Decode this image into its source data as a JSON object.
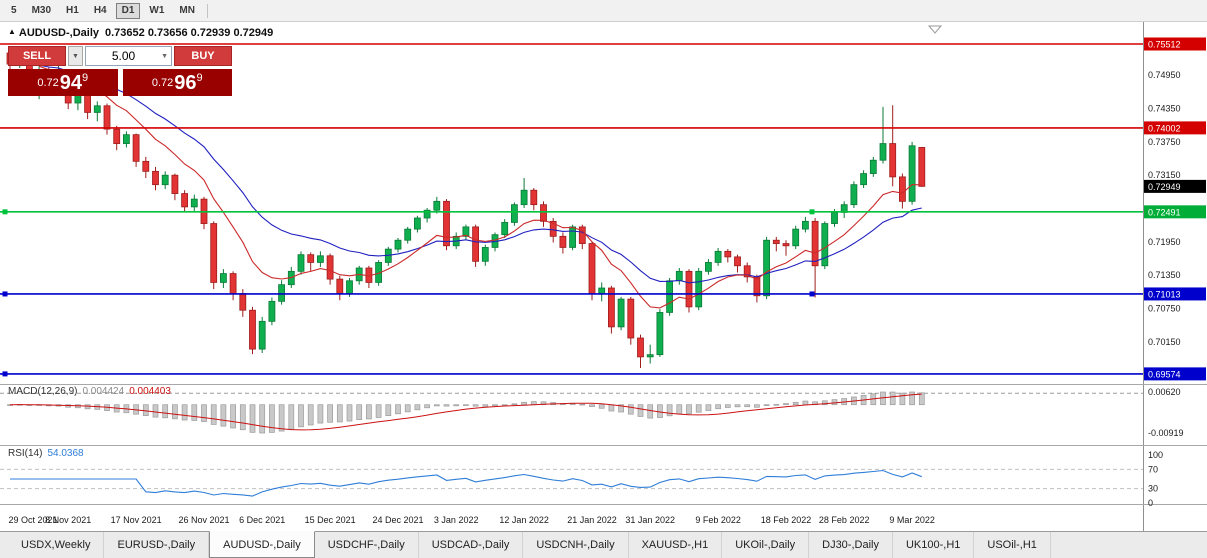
{
  "toolbar": {
    "timeframes": [
      "5",
      "M30",
      "H1",
      "H4",
      "D1",
      "W1",
      "MN"
    ],
    "active": "D1"
  },
  "chart_title": {
    "marker": "▲",
    "symbol": "AUDUSD-,Daily",
    "ohlc": "0.73652 0.73656 0.72939 0.72949"
  },
  "trade_panel": {
    "sell_label": "SELL",
    "buy_label": "BUY",
    "volume": "5.00",
    "dropdown_icon": "▼",
    "sell_price": {
      "prefix": "0.72",
      "big": "94",
      "sup": "9"
    },
    "buy_price": {
      "prefix": "0.72",
      "big": "96",
      "sup": "9"
    }
  },
  "indicators": {
    "macd": {
      "name": "MACD(12,26,9)",
      "main": "0.004424",
      "signal": "0.004403",
      "axis_max": "0.00620",
      "axis_min": "-0.00919",
      "level": 0.004403
    },
    "rsi": {
      "name": "RSI(14)",
      "value": "54.0368",
      "axis": [
        "100",
        "70",
        "30",
        "0"
      ],
      "levels": [
        70,
        30
      ]
    }
  },
  "price_axis": {
    "ticks": [
      "0.74950",
      "0.74350",
      "0.73750",
      "0.73150",
      "0.71950",
      "0.71350",
      "0.70750",
      "0.70150"
    ],
    "markers": [
      {
        "text": "0.75512",
        "color": "#d40000"
      },
      {
        "text": "0.74002",
        "color": "#d40000"
      },
      {
        "text": "0.72949",
        "color": "#000000"
      },
      {
        "text": "0.72491",
        "color": "#00ad36"
      },
      {
        "text": "0.71013",
        "color": "#0000cd"
      },
      {
        "text": "0.69574",
        "color": "#0000cd"
      }
    ]
  },
  "hlines": [
    {
      "price": 0.75512,
      "color": "#d40000",
      "handles": []
    },
    {
      "price": 0.74002,
      "color": "#d40000",
      "handles": []
    },
    {
      "price": 0.72491,
      "color": "#00c23c",
      "handles": [
        5,
        812
      ]
    },
    {
      "price": 0.71013,
      "color": "#0000cd",
      "handles": [
        5,
        812
      ]
    },
    {
      "price": 0.69574,
      "color": "#0000cd",
      "handles": [
        5
      ]
    }
  ],
  "time_axis": {
    "labels": [
      "29 Oct 2021",
      "8 Nov 2021",
      "17 Nov 2021",
      "26 Nov 2021",
      "6 Dec 2021",
      "15 Dec 2021",
      "24 Dec 2021",
      "3 Jan 2022",
      "12 Jan 2022",
      "21 Jan 2022",
      "31 Jan 2022",
      "9 Feb 2022",
      "18 Feb 2022",
      "28 Feb 2022",
      "9 Mar 2022"
    ],
    "indices": [
      0,
      6,
      13,
      20,
      26,
      33,
      40,
      46,
      53,
      60,
      66,
      73,
      80,
      86,
      93
    ]
  },
  "tabs": {
    "items": [
      "USDX,Weekly",
      "EURUSD-,Daily",
      "AUDUSD-,Daily",
      "USDCHF-,Daily",
      "USDCAD-,Daily",
      "USDCNH-,Daily",
      "XAUUSD-,H1",
      "UKOil-,Daily",
      "DJ30-,Daily",
      "UK100-,H1",
      "USOil-,H1"
    ],
    "active": "AUDUSD-,Daily"
  },
  "chart_data": {
    "type": "candlestick",
    "symbol": "AUDUSD",
    "timeframe": "Daily",
    "current_price": 0.72949,
    "colors": {
      "up": "#0fae4e",
      "up_dark": "#0b7a37",
      "down": "#e23434",
      "down_dark": "#9e1c1c",
      "ma_fast": "#cc2929",
      "ma_slow": "#2020c0",
      "macd_hist": "#c9c9c9",
      "macd_signal": "#cc1111",
      "rsi_line": "#2f7ed8"
    },
    "candles": [
      [
        0.7535,
        0.7541,
        0.7492,
        0.7515
      ],
      [
        0.7515,
        0.7536,
        0.7508,
        0.7528
      ],
      [
        0.7528,
        0.7532,
        0.7478,
        0.749
      ],
      [
        0.749,
        0.7512,
        0.7452,
        0.7505
      ],
      [
        0.7505,
        0.751,
        0.7464,
        0.7477
      ],
      [
        0.7477,
        0.7529,
        0.747,
        0.749
      ],
      [
        0.749,
        0.7494,
        0.7434,
        0.7445
      ],
      [
        0.7445,
        0.7468,
        0.7432,
        0.746
      ],
      [
        0.746,
        0.7465,
        0.7416,
        0.7428
      ],
      [
        0.7428,
        0.7448,
        0.7412,
        0.744
      ],
      [
        0.744,
        0.7444,
        0.7388,
        0.7398
      ],
      [
        0.7398,
        0.7404,
        0.736,
        0.7372
      ],
      [
        0.7372,
        0.7394,
        0.7365,
        0.7388
      ],
      [
        0.7388,
        0.739,
        0.733,
        0.734
      ],
      [
        0.734,
        0.7348,
        0.731,
        0.7322
      ],
      [
        0.7322,
        0.733,
        0.7288,
        0.7298
      ],
      [
        0.7298,
        0.7322,
        0.729,
        0.7315
      ],
      [
        0.7315,
        0.7318,
        0.727,
        0.7282
      ],
      [
        0.7282,
        0.7288,
        0.7248,
        0.7258
      ],
      [
        0.7258,
        0.728,
        0.725,
        0.7272
      ],
      [
        0.7272,
        0.7276,
        0.7218,
        0.7228
      ],
      [
        0.7228,
        0.7232,
        0.711,
        0.7122
      ],
      [
        0.7122,
        0.7146,
        0.7112,
        0.7138
      ],
      [
        0.7138,
        0.7142,
        0.709,
        0.7102
      ],
      [
        0.7102,
        0.711,
        0.706,
        0.7072
      ],
      [
        0.7072,
        0.7078,
        0.6993,
        0.7002
      ],
      [
        0.7002,
        0.706,
        0.6995,
        0.7052
      ],
      [
        0.7052,
        0.7095,
        0.7045,
        0.7088
      ],
      [
        0.7088,
        0.7126,
        0.7082,
        0.7118
      ],
      [
        0.7118,
        0.715,
        0.7112,
        0.7142
      ],
      [
        0.7142,
        0.7178,
        0.7136,
        0.7172
      ],
      [
        0.7172,
        0.7176,
        0.7142,
        0.7158
      ],
      [
        0.7158,
        0.7178,
        0.715,
        0.717
      ],
      [
        0.717,
        0.7174,
        0.7118,
        0.7128
      ],
      [
        0.7128,
        0.7134,
        0.709,
        0.7102
      ],
      [
        0.7102,
        0.713,
        0.7096,
        0.7125
      ],
      [
        0.7125,
        0.7152,
        0.7118,
        0.7148
      ],
      [
        0.7148,
        0.7152,
        0.7112,
        0.7122
      ],
      [
        0.7122,
        0.7162,
        0.7116,
        0.7158
      ],
      [
        0.7158,
        0.7186,
        0.7152,
        0.7182
      ],
      [
        0.7182,
        0.7202,
        0.7176,
        0.7198
      ],
      [
        0.7198,
        0.7222,
        0.7192,
        0.7218
      ],
      [
        0.7218,
        0.7242,
        0.7212,
        0.7238
      ],
      [
        0.7238,
        0.7256,
        0.723,
        0.7252
      ],
      [
        0.7252,
        0.7276,
        0.7246,
        0.7268
      ],
      [
        0.7268,
        0.7272,
        0.718,
        0.7188
      ],
      [
        0.7188,
        0.7212,
        0.7182,
        0.7205
      ],
      [
        0.7205,
        0.7226,
        0.7198,
        0.7222
      ],
      [
        0.7222,
        0.7226,
        0.715,
        0.716
      ],
      [
        0.716,
        0.719,
        0.7152,
        0.7185
      ],
      [
        0.7185,
        0.7212,
        0.7178,
        0.7208
      ],
      [
        0.7208,
        0.7236,
        0.7202,
        0.723
      ],
      [
        0.723,
        0.7266,
        0.7224,
        0.7262
      ],
      [
        0.7262,
        0.731,
        0.7256,
        0.7288
      ],
      [
        0.7288,
        0.7292,
        0.7252,
        0.7262
      ],
      [
        0.7262,
        0.7268,
        0.7222,
        0.7232
      ],
      [
        0.7232,
        0.7238,
        0.7194,
        0.7205
      ],
      [
        0.7205,
        0.7212,
        0.7174,
        0.7185
      ],
      [
        0.7185,
        0.7226,
        0.718,
        0.7222
      ],
      [
        0.7222,
        0.7226,
        0.7182,
        0.7192
      ],
      [
        0.7192,
        0.7196,
        0.709,
        0.7102
      ],
      [
        0.7102,
        0.7122,
        0.7088,
        0.7112
      ],
      [
        0.7112,
        0.7116,
        0.703,
        0.7042
      ],
      [
        0.7042,
        0.7096,
        0.7036,
        0.7092
      ],
      [
        0.7092,
        0.7096,
        0.701,
        0.7022
      ],
      [
        0.7022,
        0.7028,
        0.6968,
        0.6988
      ],
      [
        0.6988,
        0.701,
        0.6976,
        0.6992
      ],
      [
        0.6992,
        0.7074,
        0.6988,
        0.7068
      ],
      [
        0.7068,
        0.713,
        0.7062,
        0.7125
      ],
      [
        0.7125,
        0.7148,
        0.7118,
        0.7142
      ],
      [
        0.7142,
        0.7146,
        0.7068,
        0.7078
      ],
      [
        0.7078,
        0.7148,
        0.7072,
        0.7142
      ],
      [
        0.7142,
        0.7164,
        0.7136,
        0.7158
      ],
      [
        0.7158,
        0.7184,
        0.7152,
        0.7178
      ],
      [
        0.7178,
        0.7182,
        0.7158,
        0.7168
      ],
      [
        0.7168,
        0.7172,
        0.714,
        0.7152
      ],
      [
        0.7152,
        0.7158,
        0.7122,
        0.7132
      ],
      [
        0.7132,
        0.7136,
        0.7086,
        0.7098
      ],
      [
        0.7098,
        0.7204,
        0.7092,
        0.7198
      ],
      [
        0.7198,
        0.7204,
        0.7178,
        0.7192
      ],
      [
        0.7192,
        0.7198,
        0.717,
        0.7188
      ],
      [
        0.7188,
        0.7224,
        0.7182,
        0.7218
      ],
      [
        0.7218,
        0.724,
        0.7212,
        0.7232
      ],
      [
        0.7232,
        0.7238,
        0.7095,
        0.7152
      ],
      [
        0.7152,
        0.7232,
        0.7146,
        0.7228
      ],
      [
        0.7228,
        0.7254,
        0.7222,
        0.7248
      ],
      [
        0.7248,
        0.7268,
        0.7238,
        0.7262
      ],
      [
        0.7262,
        0.7304,
        0.7256,
        0.7298
      ],
      [
        0.7298,
        0.7324,
        0.7292,
        0.7318
      ],
      [
        0.7318,
        0.7348,
        0.7312,
        0.7342
      ],
      [
        0.7342,
        0.7438,
        0.7336,
        0.7372
      ],
      [
        0.7372,
        0.7441,
        0.7295,
        0.7312
      ],
      [
        0.7312,
        0.7318,
        0.7255,
        0.7268
      ],
      [
        0.7268,
        0.7375,
        0.7262,
        0.7368
      ],
      [
        0.7365,
        0.7366,
        0.7294,
        0.7295
      ]
    ]
  }
}
